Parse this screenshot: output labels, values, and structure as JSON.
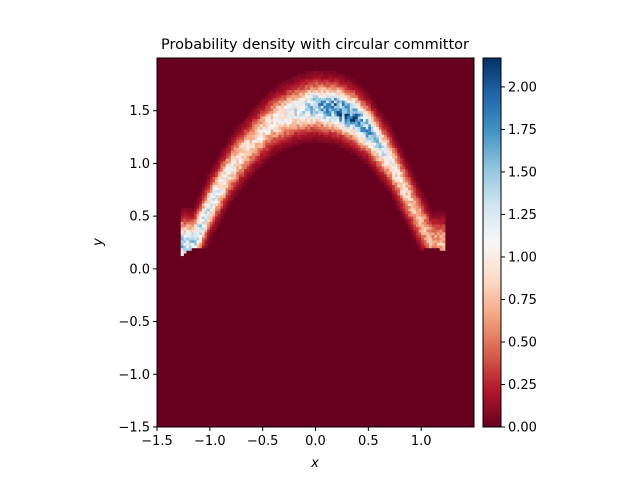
{
  "chart_data": {
    "type": "heatmap",
    "title": "Probability density with circular committor",
    "xlabel": "x",
    "ylabel": "y",
    "xlim": [
      -1.5,
      1.5
    ],
    "ylim": [
      -1.5,
      2.0
    ],
    "x_ticks": [
      {
        "value": -1.5,
        "label": "−1.5"
      },
      {
        "value": -1.0,
        "label": "−1.0"
      },
      {
        "value": -0.5,
        "label": "−0.5"
      },
      {
        "value": 0.0,
        "label": "0.0"
      },
      {
        "value": 0.5,
        "label": "0.5"
      },
      {
        "value": 1.0,
        "label": "1.0"
      }
    ],
    "y_ticks": [
      {
        "value": -1.5,
        "label": "−1.5"
      },
      {
        "value": -1.0,
        "label": "−1.0"
      },
      {
        "value": -0.5,
        "label": "−0.5"
      },
      {
        "value": 0.0,
        "label": "0.0"
      },
      {
        "value": 0.5,
        "label": "0.5"
      },
      {
        "value": 1.0,
        "label": "1.0"
      },
      {
        "value": 1.5,
        "label": "1.5"
      }
    ],
    "colorbar": {
      "colormap": "RdBu",
      "min": 0.0,
      "max": 2.17,
      "ticks": [
        {
          "value": 0.0,
          "label": "0.00"
        },
        {
          "value": 0.25,
          "label": "0.25"
        },
        {
          "value": 0.5,
          "label": "0.50"
        },
        {
          "value": 0.75,
          "label": "0.75"
        },
        {
          "value": 1.0,
          "label": "1.00"
        },
        {
          "value": 1.25,
          "label": "1.25"
        },
        {
          "value": 1.5,
          "label": "1.50"
        },
        {
          "value": 1.75,
          "label": "1.75"
        },
        {
          "value": 2.0,
          "label": "2.00"
        }
      ]
    },
    "density_arc": {
      "description_points_x": [
        -1.15,
        -1.0,
        -0.8,
        -0.6,
        -0.4,
        -0.2,
        0.0,
        0.2,
        0.35,
        0.5,
        0.7,
        0.9,
        1.1
      ],
      "density_ridge_y": [
        0.25,
        0.6,
        0.95,
        1.2,
        1.4,
        1.5,
        1.55,
        1.52,
        1.45,
        1.32,
        1.05,
        0.65,
        0.25
      ],
      "peak_density": [
        1.4,
        1.2,
        1.0,
        0.9,
        1.0,
        1.2,
        1.5,
        1.8,
        1.9,
        1.6,
        1.1,
        0.8,
        0.7
      ]
    },
    "committor_disks": [
      {
        "cx": -1.1,
        "cy": 0.0,
        "r": 0.2
      },
      {
        "cx": 1.1,
        "cy": 0.0,
        "r": 0.2
      }
    ]
  }
}
